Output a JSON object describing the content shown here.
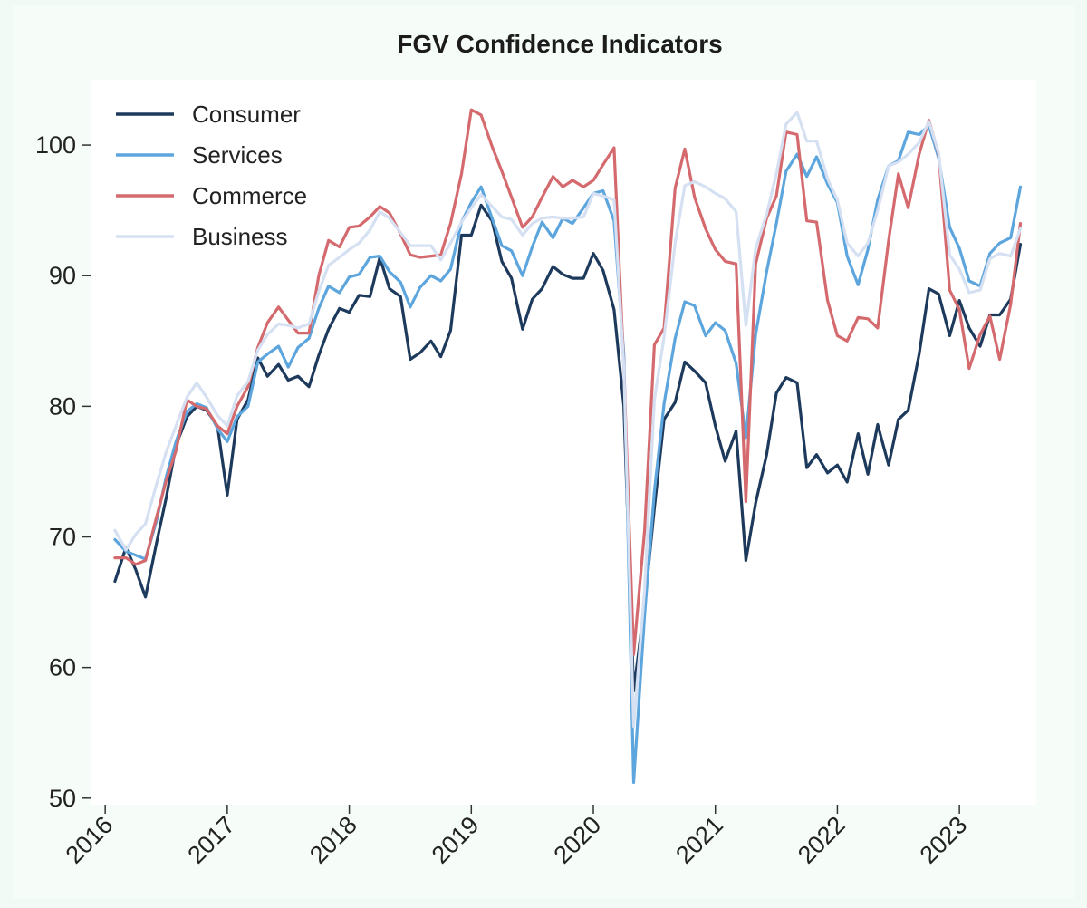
{
  "chart_data": {
    "type": "line",
    "title": "FGV Confidence Indicators",
    "xlabel": "",
    "ylabel": "",
    "xlim": [
      2015.88,
      2023.63
    ],
    "ylim": [
      49.5,
      105.0
    ],
    "x_ticks": [
      2016,
      2017,
      2018,
      2019,
      2020,
      2021,
      2022,
      2023
    ],
    "x_tick_labels": [
      "2016",
      "2017",
      "2018",
      "2019",
      "2020",
      "2021",
      "2022",
      "2023"
    ],
    "y_ticks": [
      50,
      60,
      70,
      80,
      90,
      100
    ],
    "y_tick_labels": [
      "50",
      "60",
      "70",
      "80",
      "90",
      "100"
    ],
    "grid": false,
    "legend_position": "top-left",
    "series": [
      {
        "name": "Consumer",
        "color": "#1d3a5c",
        "x": [
          2016.08,
          2016.17,
          2016.25,
          2016.33,
          2016.42,
          2016.5,
          2016.58,
          2016.67,
          2016.75,
          2016.83,
          2016.92,
          2017.0,
          2017.08,
          2017.17,
          2017.25,
          2017.33,
          2017.42,
          2017.5,
          2017.58,
          2017.67,
          2017.75,
          2017.83,
          2017.92,
          2018.0,
          2018.08,
          2018.17,
          2018.25,
          2018.33,
          2018.42,
          2018.5,
          2018.58,
          2018.67,
          2018.75,
          2018.83,
          2018.92,
          2019.0,
          2019.08,
          2019.17,
          2019.25,
          2019.33,
          2019.42,
          2019.5,
          2019.58,
          2019.67,
          2019.75,
          2019.83,
          2019.92,
          2020.0,
          2020.08,
          2020.17,
          2020.25,
          2020.33,
          2020.42,
          2020.5,
          2020.58,
          2020.67,
          2020.75,
          2020.83,
          2020.92,
          2021.0,
          2021.08,
          2021.17,
          2021.25,
          2021.33,
          2021.42,
          2021.5,
          2021.58,
          2021.67,
          2021.75,
          2021.83,
          2021.92,
          2022.0,
          2022.08,
          2022.17,
          2022.25,
          2022.33,
          2022.42,
          2022.5,
          2022.58,
          2022.67,
          2022.75,
          2022.83,
          2022.92,
          2023.0,
          2023.08,
          2023.17,
          2023.25,
          2023.33,
          2023.42,
          2023.5
        ],
        "y": [
          66.6,
          69.2,
          67.5,
          65.4,
          69.5,
          73.0,
          77.0,
          79.2,
          80.0,
          79.7,
          78.5,
          73.2,
          79.0,
          80.5,
          83.7,
          82.3,
          83.2,
          82.0,
          82.3,
          81.5,
          83.9,
          85.9,
          87.5,
          87.2,
          88.5,
          88.4,
          91.4,
          89.0,
          88.4,
          83.6,
          84.1,
          85.0,
          83.8,
          85.8,
          93.1,
          93.1,
          95.4,
          94.2,
          91.1,
          89.8,
          85.9,
          88.2,
          89.0,
          90.7,
          90.1,
          89.8,
          89.8,
          91.7,
          90.4,
          87.4,
          80.0,
          58.2,
          64.8,
          72.2,
          79.0,
          80.3,
          83.4,
          82.7,
          81.8,
          78.5,
          75.8,
          78.1,
          68.2,
          72.6,
          76.3,
          81.0,
          82.2,
          81.8,
          75.3,
          76.3,
          74.9,
          75.5,
          74.2,
          77.9,
          74.8,
          78.6,
          75.5,
          79.0,
          79.7,
          84.0,
          89.0,
          88.6,
          85.4,
          88.1,
          86.0,
          84.6,
          87.0,
          87.0,
          88.2,
          92.4
        ]
      },
      {
        "name": "Services",
        "color": "#5da5dd",
        "x": [
          2016.08,
          2016.17,
          2016.25,
          2016.33,
          2016.42,
          2016.5,
          2016.58,
          2016.67,
          2016.75,
          2016.83,
          2016.92,
          2017.0,
          2017.08,
          2017.17,
          2017.25,
          2017.33,
          2017.42,
          2017.5,
          2017.58,
          2017.67,
          2017.75,
          2017.83,
          2017.92,
          2018.0,
          2018.08,
          2018.17,
          2018.25,
          2018.33,
          2018.42,
          2018.5,
          2018.58,
          2018.67,
          2018.75,
          2018.83,
          2018.92,
          2019.0,
          2019.08,
          2019.17,
          2019.25,
          2019.33,
          2019.42,
          2019.5,
          2019.58,
          2019.67,
          2019.75,
          2019.83,
          2019.92,
          2020.0,
          2020.08,
          2020.17,
          2020.25,
          2020.33,
          2020.42,
          2020.5,
          2020.58,
          2020.67,
          2020.75,
          2020.83,
          2020.92,
          2021.0,
          2021.08,
          2021.17,
          2021.25,
          2021.33,
          2021.42,
          2021.5,
          2021.58,
          2021.67,
          2021.75,
          2021.83,
          2021.92,
          2022.0,
          2022.08,
          2022.17,
          2022.25,
          2022.33,
          2022.42,
          2022.5,
          2022.58,
          2022.67,
          2022.75,
          2022.83,
          2022.92,
          2023.0,
          2023.08,
          2023.17,
          2023.25,
          2023.33,
          2023.42,
          2023.5
        ],
        "y": [
          69.8,
          68.9,
          68.6,
          68.3,
          71.2,
          74.6,
          77.3,
          79.6,
          80.2,
          79.9,
          78.3,
          77.3,
          79.2,
          80.0,
          83.4,
          84.0,
          84.6,
          83.0,
          84.5,
          85.2,
          87.5,
          89.2,
          88.7,
          89.9,
          90.1,
          91.4,
          91.5,
          90.3,
          89.5,
          87.6,
          89.1,
          90.0,
          89.6,
          90.5,
          94.1,
          95.6,
          96.8,
          94.4,
          92.3,
          91.9,
          90.0,
          92.2,
          94.1,
          92.9,
          94.4,
          94.0,
          95.2,
          96.3,
          96.5,
          94.2,
          84.0,
          51.2,
          64.0,
          73.5,
          80.2,
          85.2,
          88.0,
          87.7,
          85.4,
          86.4,
          85.8,
          83.3,
          77.6,
          85.5,
          90.3,
          94.0,
          98.0,
          99.3,
          97.6,
          99.1,
          97.0,
          95.6,
          91.5,
          89.3,
          92.0,
          95.8,
          98.4,
          98.8,
          101.0,
          100.8,
          101.5,
          99.0,
          93.7,
          92.1,
          89.6,
          89.2,
          91.7,
          92.5,
          92.9,
          96.8
        ]
      },
      {
        "name": "Commerce",
        "color": "#d46a6e",
        "x": [
          2016.08,
          2016.17,
          2016.25,
          2016.33,
          2016.42,
          2016.5,
          2016.58,
          2016.67,
          2016.75,
          2016.83,
          2016.92,
          2017.0,
          2017.08,
          2017.17,
          2017.25,
          2017.33,
          2017.42,
          2017.5,
          2017.58,
          2017.67,
          2017.75,
          2017.83,
          2017.92,
          2018.0,
          2018.08,
          2018.17,
          2018.25,
          2018.33,
          2018.42,
          2018.5,
          2018.58,
          2018.67,
          2018.75,
          2018.83,
          2018.92,
          2019.0,
          2019.08,
          2019.17,
          2019.25,
          2019.33,
          2019.42,
          2019.5,
          2019.58,
          2019.67,
          2019.75,
          2019.83,
          2019.92,
          2020.0,
          2020.08,
          2020.17,
          2020.25,
          2020.33,
          2020.42,
          2020.5,
          2020.58,
          2020.67,
          2020.75,
          2020.83,
          2020.92,
          2021.0,
          2021.08,
          2021.17,
          2021.25,
          2021.33,
          2021.42,
          2021.5,
          2021.58,
          2021.67,
          2021.75,
          2021.83,
          2021.92,
          2022.0,
          2022.08,
          2022.17,
          2022.25,
          2022.33,
          2022.42,
          2022.5,
          2022.58,
          2022.67,
          2022.75,
          2022.83,
          2022.92,
          2023.0,
          2023.08,
          2023.17,
          2023.25,
          2023.33,
          2023.42,
          2023.5
        ],
        "y": [
          68.4,
          68.4,
          67.9,
          68.2,
          71.5,
          74.3,
          76.6,
          80.5,
          80.0,
          79.8,
          78.5,
          77.9,
          80.0,
          81.5,
          84.5,
          86.4,
          87.6,
          86.6,
          85.6,
          85.6,
          90.0,
          92.7,
          92.2,
          93.7,
          93.8,
          94.5,
          95.3,
          94.8,
          93.2,
          91.6,
          91.4,
          91.5,
          91.6,
          94.0,
          97.8,
          102.7,
          102.3,
          99.9,
          98.0,
          96.0,
          93.7,
          94.5,
          96.0,
          97.6,
          96.8,
          97.3,
          96.8,
          97.3,
          98.5,
          99.8,
          83.0,
          61.0,
          70.5,
          84.7,
          86.0,
          96.7,
          99.7,
          96.0,
          93.6,
          92.0,
          91.1,
          90.9,
          72.7,
          90.9,
          94.4,
          96.1,
          101.0,
          100.8,
          94.2,
          94.1,
          88.1,
          85.4,
          85.0,
          86.8,
          86.7,
          86.0,
          92.7,
          97.8,
          95.2,
          99.3,
          101.9,
          99.3,
          88.9,
          87.4,
          82.9,
          85.5,
          86.9,
          83.6,
          87.8,
          94.0
        ]
      },
      {
        "name": "Business",
        "color": "#d5e0f2",
        "x": [
          2016.08,
          2016.17,
          2016.25,
          2016.33,
          2016.42,
          2016.5,
          2016.58,
          2016.67,
          2016.75,
          2016.83,
          2016.92,
          2017.0,
          2017.08,
          2017.17,
          2017.25,
          2017.33,
          2017.42,
          2017.5,
          2017.58,
          2017.67,
          2017.75,
          2017.83,
          2017.92,
          2018.0,
          2018.08,
          2018.17,
          2018.25,
          2018.33,
          2018.42,
          2018.5,
          2018.58,
          2018.67,
          2018.75,
          2018.83,
          2018.92,
          2019.0,
          2019.08,
          2019.17,
          2019.25,
          2019.33,
          2019.42,
          2019.5,
          2019.58,
          2019.67,
          2019.75,
          2019.83,
          2019.92,
          2020.0,
          2020.08,
          2020.17,
          2020.25,
          2020.33,
          2020.42,
          2020.5,
          2020.58,
          2020.67,
          2020.75,
          2020.83,
          2020.92,
          2021.0,
          2021.08,
          2021.17,
          2021.25,
          2021.33,
          2021.42,
          2021.5,
          2021.58,
          2021.67,
          2021.75,
          2021.83,
          2021.92,
          2022.0,
          2022.08,
          2022.17,
          2022.25,
          2022.33,
          2022.42,
          2022.5,
          2022.58,
          2022.67,
          2022.75,
          2022.83,
          2022.92,
          2023.0,
          2023.08,
          2023.17,
          2023.25,
          2023.33,
          2023.42,
          2023.5
        ],
        "y": [
          70.5,
          69.0,
          70.2,
          71.0,
          74.0,
          76.5,
          78.5,
          80.7,
          81.8,
          80.7,
          79.3,
          78.5,
          80.8,
          81.9,
          84.3,
          85.5,
          86.3,
          86.2,
          86.0,
          86.3,
          88.8,
          90.8,
          91.4,
          92.0,
          92.5,
          93.5,
          94.9,
          94.4,
          93.3,
          92.3,
          92.3,
          92.3,
          91.2,
          92.5,
          94.1,
          95.2,
          96.2,
          95.3,
          94.5,
          94.3,
          93.1,
          94.0,
          94.4,
          94.5,
          94.4,
          94.4,
          94.5,
          96.3,
          96.1,
          95.8,
          83.0,
          55.5,
          66.0,
          80.5,
          85.3,
          92.5,
          96.9,
          97.2,
          96.8,
          96.3,
          95.9,
          94.9,
          86.2,
          92.1,
          94.7,
          97.8,
          101.6,
          102.5,
          100.3,
          100.3,
          97.4,
          95.8,
          92.5,
          91.5,
          92.5,
          95.0,
          98.4,
          98.7,
          99.3,
          100.2,
          101.8,
          99.4,
          91.6,
          90.5,
          88.7,
          88.9,
          91.3,
          91.7,
          91.5,
          93.6
        ]
      }
    ]
  }
}
